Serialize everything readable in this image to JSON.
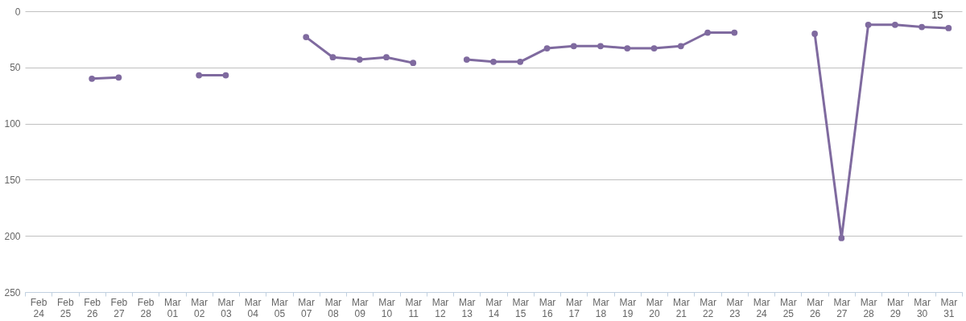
{
  "chart_data": {
    "type": "line",
    "categories": [
      "Feb 24",
      "Feb 25",
      "Feb 26",
      "Feb 27",
      "Feb 28",
      "Mar 01",
      "Mar 02",
      "Mar 03",
      "Mar 04",
      "Mar 05",
      "Mar 07",
      "Mar 08",
      "Mar 09",
      "Mar 10",
      "Mar 11",
      "Mar 12",
      "Mar 13",
      "Mar 14",
      "Mar 15",
      "Mar 16",
      "Mar 17",
      "Mar 18",
      "Mar 19",
      "Mar 20",
      "Mar 21",
      "Mar 22",
      "Mar 23",
      "Mar 24",
      "Mar 25",
      "Mar 26",
      "Mar 27",
      "Mar 28",
      "Mar 29",
      "Mar 30",
      "Mar 31"
    ],
    "series": [
      {
        "color": "#7f6a9f",
        "values": [
          null,
          null,
          60,
          59,
          null,
          null,
          57,
          57,
          null,
          null,
          23,
          41,
          43,
          41,
          46,
          null,
          43,
          45,
          45,
          33,
          31,
          31,
          33,
          33,
          31,
          19,
          19,
          null,
          null,
          20,
          202,
          12,
          12,
          14,
          15
        ]
      }
    ],
    "ylim": [
      250,
      0
    ],
    "yticks": [
      0,
      50,
      100,
      150,
      200,
      250
    ],
    "grid": "y",
    "marker": "circle",
    "line_style": "solid",
    "legend": false,
    "annotations": [
      {
        "text": "15",
        "x": "Mar 31",
        "y": 15
      }
    ]
  }
}
